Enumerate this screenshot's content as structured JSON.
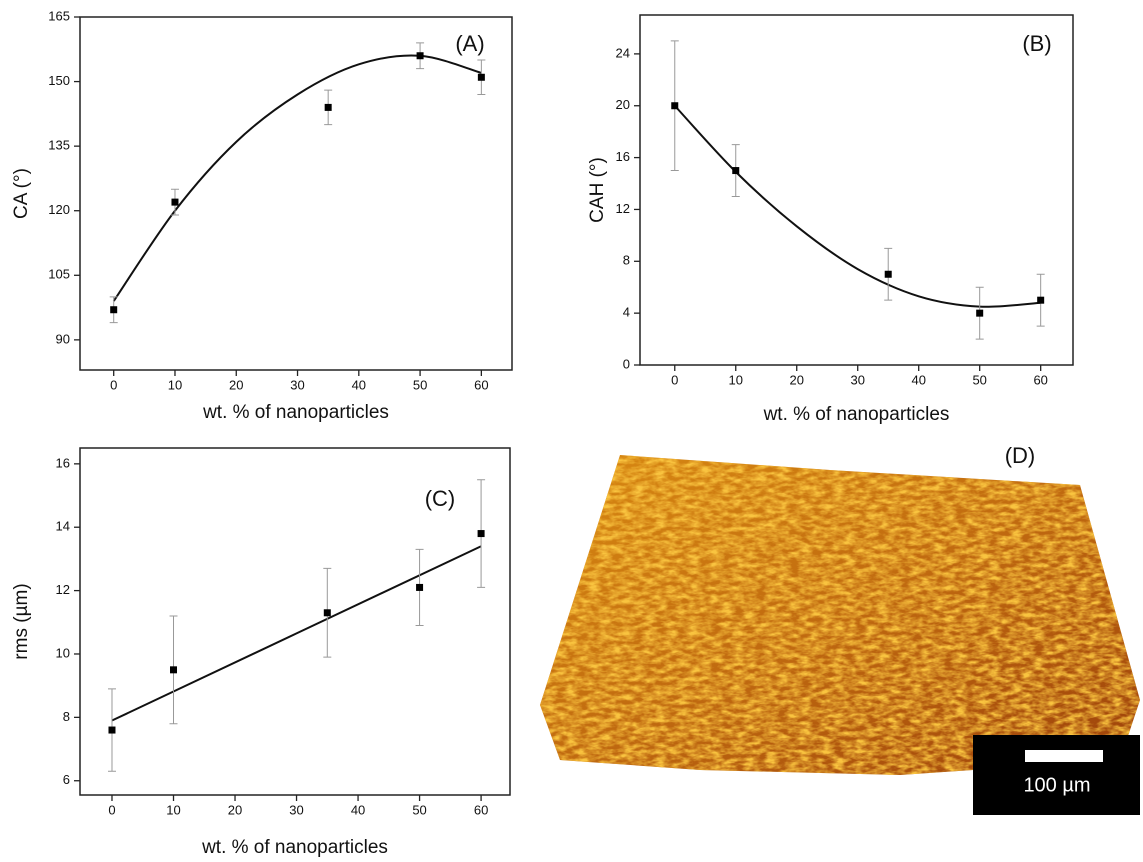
{
  "chart_data": [
    {
      "type": "scatter",
      "annotation": "(A)",
      "ylabel": "CA (°)",
      "xlabel": "wt. % of nanoparticles",
      "x": [
        0,
        10,
        35,
        50,
        60
      ],
      "series": [
        {
          "color": "#000000",
          "values": [
            97,
            122,
            144,
            156,
            151
          ],
          "errors": [
            3,
            3,
            4,
            3,
            4
          ]
        }
      ],
      "fit": {
        "x": [
          0,
          10,
          20,
          30,
          40,
          50,
          60
        ],
        "values": [
          99,
          120,
          136,
          147,
          154,
          156,
          152
        ]
      },
      "xlim": [
        -5.5,
        65
      ],
      "xticks": [
        0,
        10,
        20,
        30,
        40,
        50,
        60
      ],
      "ylim": [
        83,
        165
      ],
      "yticks": [
        90,
        105,
        120,
        135,
        150,
        165
      ]
    },
    {
      "type": "scatter",
      "annotation": "(B)",
      "ylabel": "CAH (°)",
      "xlabel": "wt. % of nanoparticles",
      "x": [
        0,
        10,
        35,
        50,
        60
      ],
      "series": [
        {
          "color": "#000000",
          "values": [
            20,
            15,
            7,
            4,
            5
          ],
          "errors": [
            5,
            2,
            2,
            2,
            2
          ]
        }
      ],
      "fit": {
        "x": [
          0,
          10,
          20,
          30,
          40,
          50,
          60
        ],
        "values": [
          20,
          14.9,
          10.7,
          7.4,
          5.3,
          4.5,
          4.8
        ]
      },
      "xlim": [
        -5.7,
        65.3
      ],
      "xticks": [
        0,
        10,
        20,
        30,
        40,
        50,
        60
      ],
      "ylim": [
        0,
        27
      ],
      "yticks": [
        0,
        4,
        8,
        12,
        16,
        20,
        24
      ]
    },
    {
      "type": "scatter",
      "annotation": "(C)",
      "ylabel": "rms (µm)",
      "xlabel": "wt. % of nanoparticles",
      "x": [
        0,
        10,
        35,
        50,
        60
      ],
      "series": [
        {
          "color": "#000000",
          "values": [
            7.6,
            9.5,
            11.3,
            12.1,
            13.8
          ],
          "errors": [
            1.3,
            1.7,
            1.4,
            1.2,
            1.7
          ]
        }
      ],
      "fit": {
        "x": [
          0,
          60
        ],
        "values": [
          7.9,
          13.4
        ]
      },
      "xlim": [
        -5.2,
        64.7
      ],
      "xticks": [
        0,
        10,
        20,
        30,
        40,
        50,
        60
      ],
      "ylim": [
        5.55,
        16.5
      ],
      "yticks": [
        6,
        8,
        10,
        12,
        14,
        16
      ]
    }
  ],
  "image_panel": {
    "label": "(D)",
    "scale_bar": "100 µm"
  }
}
